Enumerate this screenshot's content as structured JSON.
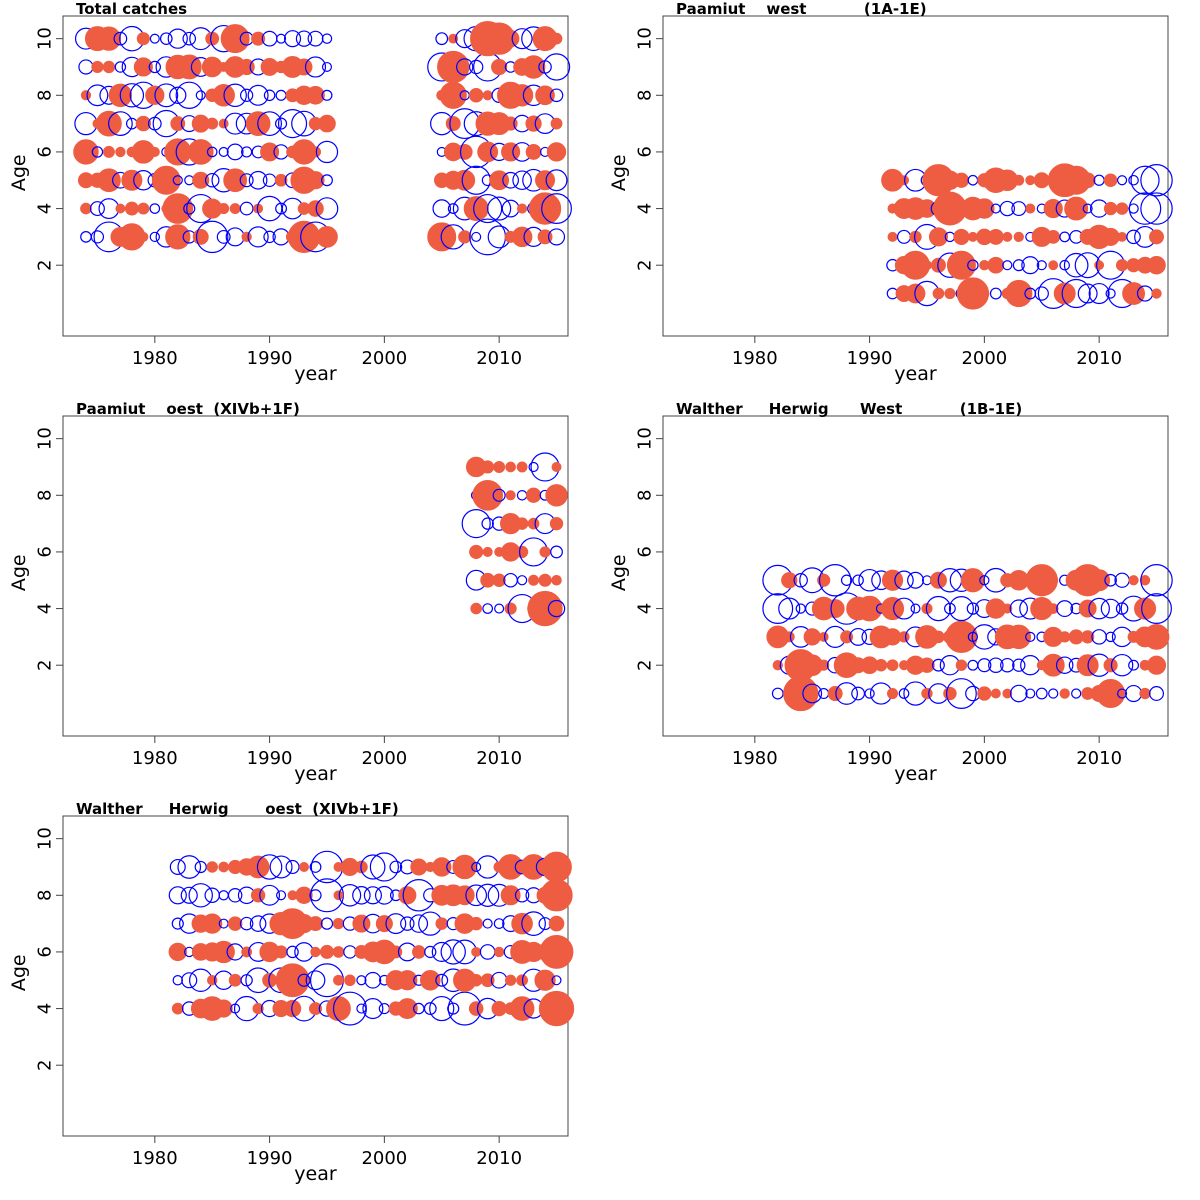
{
  "colors": {
    "positive": "#EE5C42",
    "negative": "#0000FF",
    "frame": "#444444"
  },
  "chart_data": [
    {
      "type": "scatter",
      "title": "Total catches",
      "xlabel": "year",
      "ylabel": "Age",
      "xlim": [
        1972,
        2016
      ],
      "ylim": [
        -0.5,
        10.8
      ],
      "xticks": [
        1980,
        1990,
        2000,
        2010
      ],
      "yticks": [
        2,
        4,
        6,
        8,
        10
      ],
      "ages": [
        3,
        4,
        5,
        6,
        7,
        8,
        9,
        10
      ],
      "year_ranges": [
        [
          1974,
          1995
        ],
        [
          2005,
          2015
        ]
      ],
      "seed": 11,
      "points": [
        {
          "x": 1976,
          "y": 3,
          "v": -0.9
        },
        {
          "x": 1978,
          "y": 3,
          "v": 0.7
        },
        {
          "x": 1982,
          "y": 3,
          "v": 0.6
        },
        {
          "x": 1985,
          "y": 3,
          "v": -1.0
        },
        {
          "x": 1993,
          "y": 3,
          "v": 1.0
        },
        {
          "x": 1994,
          "y": 3,
          "v": -0.9
        },
        {
          "x": 2005,
          "y": 3,
          "v": 0.8
        },
        {
          "x": 2009,
          "y": 3,
          "v": -1.3
        },
        {
          "x": 1982,
          "y": 4,
          "v": 0.9
        },
        {
          "x": 1984,
          "y": 4,
          "v": -0.8
        },
        {
          "x": 2009,
          "y": 4,
          "v": -0.8
        },
        {
          "x": 2014,
          "y": 4,
          "v": 1.0
        },
        {
          "x": 2015,
          "y": 4,
          "v": -0.9
        },
        {
          "x": 1981,
          "y": 5,
          "v": 0.8
        },
        {
          "x": 1993,
          "y": 5,
          "v": 0.7
        },
        {
          "x": 2008,
          "y": 5,
          "v": -0.8
        },
        {
          "x": 1982,
          "y": 6,
          "v": 0.7
        },
        {
          "x": 1983,
          "y": 6,
          "v": -0.7
        },
        {
          "x": 2008,
          "y": 6,
          "v": -1.0
        },
        {
          "x": 1981,
          "y": 7,
          "v": -0.7
        },
        {
          "x": 1992,
          "y": 7,
          "v": -0.8
        },
        {
          "x": 2007,
          "y": 7,
          "v": -0.9
        },
        {
          "x": 1983,
          "y": 8,
          "v": -0.7
        },
        {
          "x": 1979,
          "y": 8,
          "v": -0.7
        },
        {
          "x": 2006,
          "y": 8,
          "v": 0.7
        },
        {
          "x": 2011,
          "y": 8,
          "v": 0.7
        },
        {
          "x": 2006,
          "y": 9,
          "v": 1.0
        },
        {
          "x": 2005,
          "y": 9,
          "v": -0.8
        },
        {
          "x": 2009,
          "y": 9,
          "v": -0.8
        },
        {
          "x": 2015,
          "y": 9,
          "v": -0.7
        },
        {
          "x": 1987,
          "y": 10,
          "v": 0.8
        },
        {
          "x": 1986,
          "y": 10,
          "v": -0.7
        },
        {
          "x": 2009,
          "y": 10,
          "v": 1.2
        },
        {
          "x": 2010,
          "y": 10,
          "v": 1.0
        },
        {
          "x": 2008,
          "y": 10,
          "v": -0.6
        }
      ]
    },
    {
      "type": "scatter",
      "title": "Paamiut    west           (1A-1E)",
      "xlabel": "year",
      "ylabel": "Age",
      "xlim": [
        1972,
        2016
      ],
      "ylim": [
        -0.5,
        10.8
      ],
      "xticks": [
        1980,
        1990,
        2000,
        2010
      ],
      "yticks": [
        2,
        4,
        6,
        8,
        10
      ],
      "ages": [
        1,
        2,
        3,
        4,
        5
      ],
      "year_ranges": [
        [
          1992,
          2015
        ]
      ],
      "seed": 23,
      "points": [
        {
          "x": 1996,
          "y": 5,
          "v": 1.0
        },
        {
          "x": 2007,
          "y": 5,
          "v": 1.1
        },
        {
          "x": 2008,
          "y": 5,
          "v": 0.8
        },
        {
          "x": 2015,
          "y": 5,
          "v": -1.0
        },
        {
          "x": 2014,
          "y": 5,
          "v": -0.8
        },
        {
          "x": 1997,
          "y": 4,
          "v": 1.1
        },
        {
          "x": 2014,
          "y": 4,
          "v": -1.0
        },
        {
          "x": 2015,
          "y": 4,
          "v": -1.0
        },
        {
          "x": 1994,
          "y": 2,
          "v": 0.8
        },
        {
          "x": 1998,
          "y": 2,
          "v": 0.8
        },
        {
          "x": 2011,
          "y": 2,
          "v": -0.8
        },
        {
          "x": 1999,
          "y": 1,
          "v": 1.0
        },
        {
          "x": 2006,
          "y": 1,
          "v": -0.9
        },
        {
          "x": 2008,
          "y": 1,
          "v": -0.8
        },
        {
          "x": 2012,
          "y": 1,
          "v": -0.8
        },
        {
          "x": 1995,
          "y": 1,
          "v": -0.6
        },
        {
          "x": 2003,
          "y": 1,
          "v": 0.7
        }
      ]
    },
    {
      "type": "scatter",
      "title": "Paamiut    oest  (XIVb+1F)",
      "xlabel": "year",
      "ylabel": "Age",
      "xlim": [
        1972,
        2016
      ],
      "ylim": [
        -0.5,
        10.8
      ],
      "xticks": [
        1980,
        1990,
        2000,
        2010
      ],
      "yticks": [
        2,
        4,
        6,
        8,
        10
      ],
      "ages": [
        4,
        5,
        6,
        7,
        8,
        9
      ],
      "year_ranges": [
        [
          2008,
          2015
        ]
      ],
      "seed": 37,
      "points": [
        {
          "x": 2014,
          "y": 4,
          "v": 1.2
        },
        {
          "x": 2012,
          "y": 4,
          "v": -0.8
        },
        {
          "x": 2009,
          "y": 8,
          "v": 0.9
        },
        {
          "x": 2008,
          "y": 7,
          "v": -0.8
        },
        {
          "x": 2014,
          "y": 9,
          "v": -0.8
        },
        {
          "x": 2013,
          "y": 6,
          "v": -0.8
        }
      ]
    },
    {
      "type": "scatter",
      "title": "Walther     Herwig      West           (1B-1E)",
      "xlabel": "year",
      "ylabel": "Age",
      "xlim": [
        1972,
        2016
      ],
      "ylim": [
        -0.5,
        10.8
      ],
      "xticks": [
        1980,
        1990,
        2000,
        2010
      ],
      "yticks": [
        2,
        4,
        6,
        8,
        10
      ],
      "ages": [
        1,
        2,
        3,
        4,
        5
      ],
      "year_ranges": [
        [
          1982,
          2015
        ]
      ],
      "seed": 53,
      "points": [
        {
          "x": 1984,
          "y": 1,
          "v": 1.2
        },
        {
          "x": 1984,
          "y": 2,
          "v": 1.0
        },
        {
          "x": 1982,
          "y": 4,
          "v": -0.9
        },
        {
          "x": 1982,
          "y": 5,
          "v": -0.9
        },
        {
          "x": 1987,
          "y": 5,
          "v": -1.0
        },
        {
          "x": 1988,
          "y": 4,
          "v": -1.0
        },
        {
          "x": 1998,
          "y": 3,
          "v": 1.0
        },
        {
          "x": 2005,
          "y": 5,
          "v": 1.0
        },
        {
          "x": 2009,
          "y": 5,
          "v": 1.0
        },
        {
          "x": 2015,
          "y": 5,
          "v": -1.0
        },
        {
          "x": 2015,
          "y": 4,
          "v": -0.9
        },
        {
          "x": 1998,
          "y": 1,
          "v": -0.9
        },
        {
          "x": 2011,
          "y": 1,
          "v": 0.8
        }
      ]
    },
    {
      "type": "scatter",
      "title": "Walther     Herwig       oest  (XIVb+1F)",
      "xlabel": "year",
      "ylabel": "Age",
      "xlim": [
        1972,
        2016
      ],
      "ylim": [
        -0.5,
        10.8
      ],
      "xticks": [
        1980,
        1990,
        2000,
        2010
      ],
      "yticks": [
        2,
        4,
        6,
        8,
        10
      ],
      "ages": [
        4,
        5,
        6,
        7,
        8,
        9
      ],
      "year_ranges": [
        [
          1982,
          2015
        ]
      ],
      "seed": 71,
      "points": [
        {
          "x": 1995,
          "y": 9,
          "v": -1.0
        },
        {
          "x": 1995,
          "y": 8,
          "v": -1.1
        },
        {
          "x": 1992,
          "y": 5,
          "v": 1.1
        },
        {
          "x": 1995,
          "y": 5,
          "v": -1.1
        },
        {
          "x": 1997,
          "y": 4,
          "v": -1.1
        },
        {
          "x": 2007,
          "y": 4,
          "v": -1.1
        },
        {
          "x": 2015,
          "y": 4,
          "v": 1.2
        },
        {
          "x": 2015,
          "y": 6,
          "v": 1.1
        },
        {
          "x": 1992,
          "y": 7,
          "v": 0.9
        },
        {
          "x": 2015,
          "y": 8,
          "v": 1.0
        },
        {
          "x": 2015,
          "y": 9,
          "v": 0.9
        },
        {
          "x": 2003,
          "y": 8,
          "v": -1.0
        },
        {
          "x": 2000,
          "y": 9,
          "v": -0.8
        }
      ]
    }
  ]
}
